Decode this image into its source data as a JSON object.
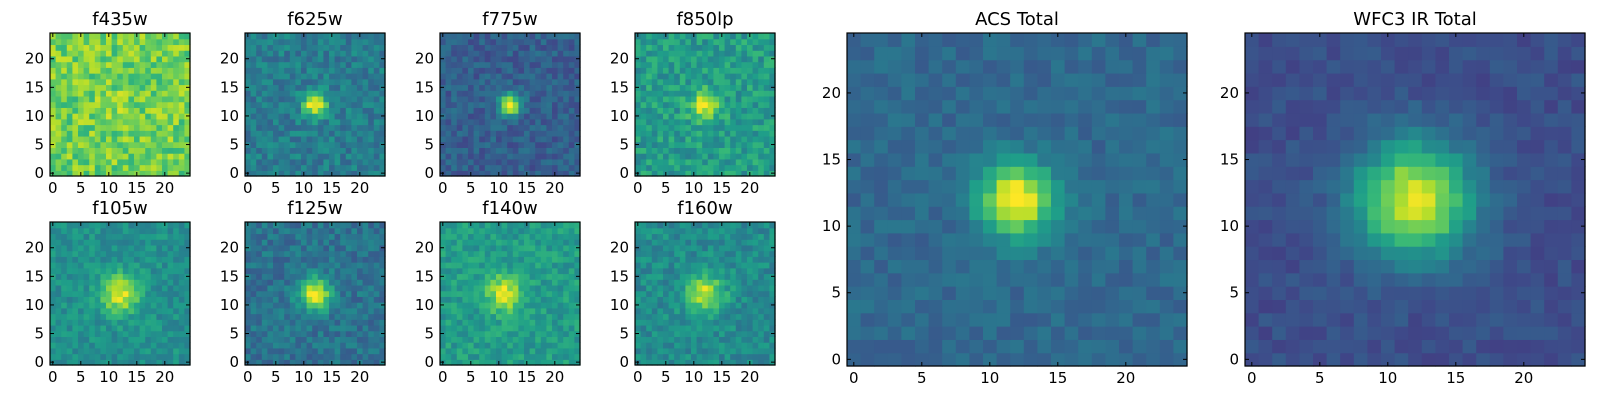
{
  "chart_data": [
    {
      "type": "heatmap",
      "title": "f435w",
      "colormap": "viridis",
      "grid_size": 25,
      "peak": [
        12,
        12
      ],
      "sigma": 2.0,
      "amplitude": 0.05,
      "background": 0.78,
      "noise": 0.28,
      "seed": 11,
      "xticks": [
        0,
        5,
        10,
        15,
        20
      ],
      "yticks": [
        0,
        5,
        10,
        15,
        20
      ],
      "xticklabels": [
        "0",
        "5",
        "10",
        "15",
        "20"
      ],
      "yticklabels": [
        "0",
        "5",
        "10",
        "15",
        "20"
      ],
      "xlim": [
        -0.5,
        24.5
      ],
      "ylim": [
        -0.5,
        24.5
      ]
    },
    {
      "type": "heatmap",
      "title": "f625w",
      "colormap": "viridis",
      "grid_size": 25,
      "peak": [
        12,
        12
      ],
      "sigma": 1.5,
      "amplitude": 0.6,
      "background": 0.42,
      "noise": 0.22,
      "seed": 23,
      "xticks": [
        0,
        5,
        10,
        15,
        20
      ],
      "yticks": [
        0,
        5,
        10,
        15,
        20
      ],
      "xticklabels": [
        "0",
        "5",
        "10",
        "15",
        "20"
      ],
      "yticklabels": [
        "0",
        "5",
        "10",
        "15",
        "20"
      ],
      "xlim": [
        -0.5,
        24.5
      ],
      "ylim": [
        -0.5,
        24.5
      ]
    },
    {
      "type": "heatmap",
      "title": "f775w",
      "colormap": "viridis",
      "grid_size": 25,
      "peak": [
        12,
        12
      ],
      "sigma": 1.3,
      "amplitude": 0.75,
      "background": 0.3,
      "noise": 0.18,
      "seed": 37,
      "xticks": [
        0,
        5,
        10,
        15,
        20
      ],
      "yticks": [
        0,
        5,
        10,
        15,
        20
      ],
      "xticklabels": [
        "0",
        "5",
        "10",
        "15",
        "20"
      ],
      "yticklabels": [
        "0",
        "5",
        "10",
        "15",
        "20"
      ],
      "xlim": [
        -0.5,
        24.5
      ],
      "ylim": [
        -0.5,
        24.5
      ]
    },
    {
      "type": "heatmap",
      "title": "f850lp",
      "colormap": "viridis",
      "grid_size": 25,
      "peak": [
        12,
        12
      ],
      "sigma": 1.8,
      "amplitude": 0.4,
      "background": 0.55,
      "noise": 0.25,
      "seed": 41,
      "xticks": [
        0,
        5,
        10,
        15,
        20
      ],
      "yticks": [
        0,
        5,
        10,
        15,
        20
      ],
      "xticklabels": [
        "0",
        "5",
        "10",
        "15",
        "20"
      ],
      "yticklabels": [
        "0",
        "5",
        "10",
        "15",
        "20"
      ],
      "xlim": [
        -0.5,
        24.5
      ],
      "ylim": [
        -0.5,
        24.5
      ]
    },
    {
      "type": "heatmap",
      "title": "f105w",
      "colormap": "viridis",
      "grid_size": 25,
      "peak": [
        12,
        12
      ],
      "sigma": 2.4,
      "amplitude": 0.45,
      "background": 0.5,
      "noise": 0.18,
      "seed": 53,
      "xticks": [
        0,
        5,
        10,
        15,
        20
      ],
      "yticks": [
        0,
        5,
        10,
        15,
        20
      ],
      "xticklabels": [
        "0",
        "5",
        "10",
        "15",
        "20"
      ],
      "yticklabels": [
        "0",
        "5",
        "10",
        "15",
        "20"
      ],
      "xlim": [
        -0.5,
        24.5
      ],
      "ylim": [
        -0.5,
        24.5
      ]
    },
    {
      "type": "heatmap",
      "title": "f125w",
      "colormap": "viridis",
      "grid_size": 25,
      "peak": [
        12,
        12
      ],
      "sigma": 2.0,
      "amplitude": 0.6,
      "background": 0.38,
      "noise": 0.2,
      "seed": 67,
      "xticks": [
        0,
        5,
        10,
        15,
        20
      ],
      "yticks": [
        0,
        5,
        10,
        15,
        20
      ],
      "xticklabels": [
        "0",
        "5",
        "10",
        "15",
        "20"
      ],
      "yticklabels": [
        "0",
        "5",
        "10",
        "15",
        "20"
      ],
      "xlim": [
        -0.5,
        24.5
      ],
      "ylim": [
        -0.5,
        24.5
      ]
    },
    {
      "type": "heatmap",
      "title": "f140w",
      "colormap": "viridis",
      "grid_size": 25,
      "peak": [
        11,
        12
      ],
      "sigma": 2.2,
      "amplitude": 0.4,
      "background": 0.55,
      "noise": 0.2,
      "seed": 71,
      "xticks": [
        0,
        5,
        10,
        15,
        20
      ],
      "yticks": [
        0,
        5,
        10,
        15,
        20
      ],
      "xticklabels": [
        "0",
        "5",
        "10",
        "15",
        "20"
      ],
      "yticklabels": [
        "0",
        "5",
        "10",
        "15",
        "20"
      ],
      "xlim": [
        -0.5,
        24.5
      ],
      "ylim": [
        -0.5,
        24.5
      ]
    },
    {
      "type": "heatmap",
      "title": "f160w",
      "colormap": "viridis",
      "grid_size": 25,
      "peak": [
        12,
        12
      ],
      "sigma": 2.3,
      "amplitude": 0.45,
      "background": 0.48,
      "noise": 0.2,
      "seed": 83,
      "xticks": [
        0,
        5,
        10,
        15,
        20
      ],
      "yticks": [
        0,
        5,
        10,
        15,
        20
      ],
      "xticklabels": [
        "0",
        "5",
        "10",
        "15",
        "20"
      ],
      "yticklabels": [
        "0",
        "5",
        "10",
        "15",
        "20"
      ],
      "xlim": [
        -0.5,
        24.5
      ],
      "ylim": [
        -0.5,
        24.5
      ]
    },
    {
      "type": "heatmap",
      "title": "ACS Total",
      "colormap": "viridis",
      "grid_size": 25,
      "peak": [
        12,
        12
      ],
      "sigma": 1.9,
      "amplitude": 0.7,
      "background": 0.34,
      "noise": 0.12,
      "seed": 97,
      "xticks": [
        0,
        5,
        10,
        15,
        20
      ],
      "yticks": [
        0,
        5,
        10,
        15,
        20
      ],
      "xticklabels": [
        "0",
        "5",
        "10",
        "15",
        "20"
      ],
      "yticklabels": [
        "0",
        "5",
        "10",
        "15",
        "20"
      ],
      "xlim": [
        -0.5,
        24.5
      ],
      "ylim": [
        -0.5,
        24.5
      ]
    },
    {
      "type": "heatmap",
      "title": "WFC3 IR Total",
      "colormap": "viridis",
      "grid_size": 25,
      "peak": [
        12,
        12
      ],
      "sigma": 3.0,
      "amplitude": 0.72,
      "background": 0.24,
      "noise": 0.1,
      "seed": 101,
      "xticks": [
        0,
        5,
        10,
        15,
        20
      ],
      "yticks": [
        0,
        5,
        10,
        15,
        20
      ],
      "xticklabels": [
        "0",
        "5",
        "10",
        "15",
        "20"
      ],
      "yticklabels": [
        "0",
        "5",
        "10",
        "15",
        "20"
      ],
      "xlim": [
        -0.5,
        24.5
      ],
      "ylim": [
        -0.5,
        24.5
      ]
    }
  ]
}
